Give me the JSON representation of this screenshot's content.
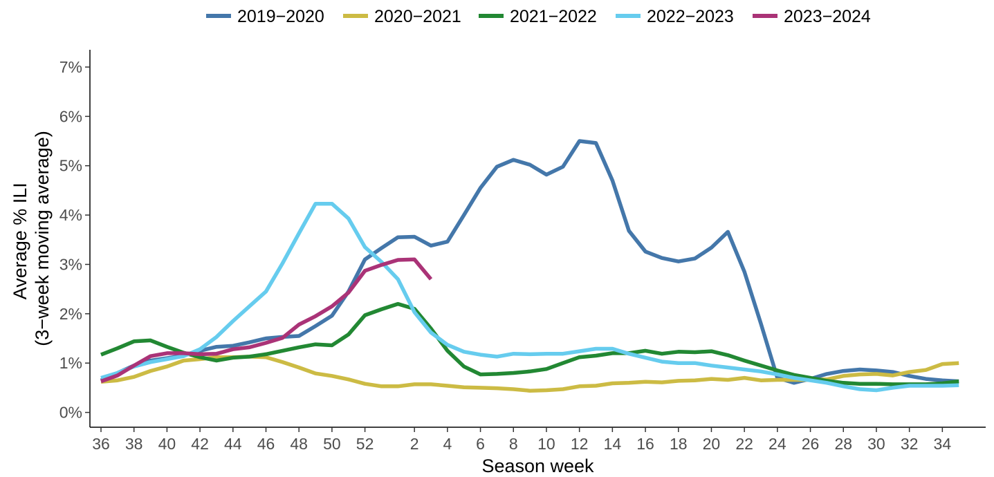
{
  "chart_data": {
    "type": "line",
    "title": "",
    "xlabel": "Season week",
    "ylabel_lines": [
      "Average % ILI",
      "(3−week moving average)"
    ],
    "x_categories": [
      36,
      37,
      38,
      39,
      40,
      41,
      42,
      43,
      44,
      45,
      46,
      47,
      48,
      49,
      50,
      51,
      52,
      53,
      1,
      2,
      3,
      4,
      5,
      6,
      7,
      8,
      9,
      10,
      11,
      12,
      13,
      14,
      15,
      16,
      17,
      18,
      19,
      20,
      21,
      22,
      23,
      24,
      25,
      26,
      27,
      28,
      29,
      30,
      31,
      32,
      33,
      34,
      35
    ],
    "x_tick_labels": [
      "36",
      "38",
      "40",
      "42",
      "44",
      "46",
      "48",
      "50",
      "52",
      "2",
      "4",
      "6",
      "8",
      "10",
      "12",
      "14",
      "16",
      "18",
      "20",
      "22",
      "24",
      "26",
      "28",
      "30",
      "32",
      "34"
    ],
    "y_ticks": [
      0,
      1,
      2,
      3,
      4,
      5,
      6,
      7
    ],
    "y_tick_labels": [
      "0%",
      "1%",
      "2%",
      "3%",
      "4%",
      "5%",
      "6%",
      "7%"
    ],
    "ylim": [
      -0.3,
      7.35
    ],
    "legend_position": "top",
    "series": [
      {
        "name": "2019−2020",
        "color": "#4477AA",
        "values": [
          0.65,
          0.8,
          0.95,
          1.05,
          1.1,
          1.15,
          1.25,
          1.33,
          1.35,
          1.42,
          1.5,
          1.53,
          1.55,
          1.75,
          1.96,
          2.45,
          3.1,
          3.33,
          3.55,
          3.56,
          3.38,
          3.46,
          4.0,
          4.55,
          4.98,
          5.12,
          5.02,
          4.82,
          4.98,
          5.5,
          5.46,
          4.7,
          3.68,
          3.26,
          3.13,
          3.06,
          3.12,
          3.34,
          3.66,
          2.85,
          1.8,
          0.7,
          0.6,
          0.68,
          0.78,
          0.84,
          0.87,
          0.85,
          0.82,
          0.74,
          0.68,
          0.65,
          0.63
        ]
      },
      {
        "name": "2020−2021",
        "color": "#CCBB44",
        "values": [
          0.62,
          0.65,
          0.72,
          0.84,
          0.93,
          1.05,
          1.08,
          1.12,
          1.12,
          1.13,
          1.12,
          1.02,
          0.91,
          0.79,
          0.74,
          0.67,
          0.58,
          0.53,
          0.53,
          0.57,
          0.57,
          0.54,
          0.51,
          0.5,
          0.49,
          0.47,
          0.44,
          0.45,
          0.47,
          0.53,
          0.54,
          0.59,
          0.6,
          0.62,
          0.61,
          0.64,
          0.65,
          0.68,
          0.66,
          0.7,
          0.65,
          0.66,
          0.66,
          0.66,
          0.67,
          0.74,
          0.77,
          0.78,
          0.75,
          0.82,
          0.86,
          0.98,
          1.0
        ]
      },
      {
        "name": "2021−2022",
        "color": "#228833",
        "values": [
          1.17,
          1.3,
          1.44,
          1.46,
          1.33,
          1.21,
          1.12,
          1.05,
          1.11,
          1.13,
          1.18,
          1.25,
          1.32,
          1.38,
          1.36,
          1.58,
          1.97,
          2.09,
          2.2,
          2.1,
          1.7,
          1.25,
          0.93,
          0.77,
          0.78,
          0.8,
          0.83,
          0.88,
          1.0,
          1.12,
          1.15,
          1.2,
          1.2,
          1.25,
          1.19,
          1.23,
          1.22,
          1.24,
          1.16,
          1.05,
          0.95,
          0.85,
          0.76,
          0.7,
          0.64,
          0.6,
          0.58,
          0.58,
          0.57,
          0.57,
          0.57,
          0.59,
          0.63
        ]
      },
      {
        "name": "2022−2023",
        "color": "#66CCEE",
        "values": [
          0.7,
          0.8,
          0.93,
          1.02,
          1.08,
          1.14,
          1.28,
          1.53,
          1.85,
          2.15,
          2.45,
          3.02,
          3.63,
          4.23,
          4.23,
          3.93,
          3.35,
          3.05,
          2.7,
          2.03,
          1.62,
          1.37,
          1.23,
          1.17,
          1.13,
          1.19,
          1.18,
          1.19,
          1.19,
          1.24,
          1.29,
          1.29,
          1.19,
          1.11,
          1.03,
          1.0,
          1.0,
          0.95,
          0.91,
          0.87,
          0.83,
          0.77,
          0.7,
          0.65,
          0.6,
          0.53,
          0.47,
          0.45,
          0.5,
          0.54,
          0.54,
          0.54,
          0.55
        ]
      },
      {
        "name": "2023−2024",
        "color": "#AA3377",
        "values": [
          0.63,
          0.75,
          0.95,
          1.14,
          1.2,
          1.2,
          1.18,
          1.19,
          1.28,
          1.32,
          1.41,
          1.51,
          1.78,
          1.95,
          2.15,
          2.43,
          2.87,
          2.99,
          3.09,
          3.1,
          2.7
        ]
      }
    ]
  }
}
